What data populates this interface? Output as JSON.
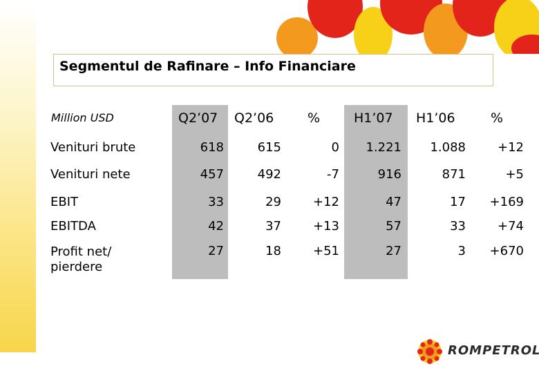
{
  "title": "Segmentul de Rafinare – Info Financiare",
  "unit": "Million USD",
  "columns": [
    "Q2’07",
    "Q2’06",
    "%",
    "H1’07",
    "H1’06",
    "%"
  ],
  "rows": [
    {
      "label": "Venituri brute",
      "values": [
        "618",
        "615",
        "0",
        "1.221",
        "1.088",
        "+12"
      ]
    },
    {
      "label": "Venituri nete",
      "values": [
        "457",
        "492",
        "-7",
        "916",
        "871",
        "+5"
      ]
    },
    {
      "label": "EBIT",
      "values": [
        "33",
        "29",
        "+12",
        "47",
        "17",
        "+169"
      ]
    },
    {
      "label": "EBITDA",
      "values": [
        "42",
        "37",
        "+13",
        "57",
        "33",
        "+74"
      ]
    },
    {
      "label": "Profit net/\npierdere",
      "values": [
        "27",
        "18",
        "+51",
        "27",
        "3",
        "+670"
      ]
    }
  ],
  "logo": {
    "text": "ROMPETROL"
  },
  "colors": {
    "highlight_column": "#bdbdbd",
    "sun_red": "#e3241b",
    "sun_orange": "#f39a1e",
    "sun_yellow": "#f7d117"
  }
}
